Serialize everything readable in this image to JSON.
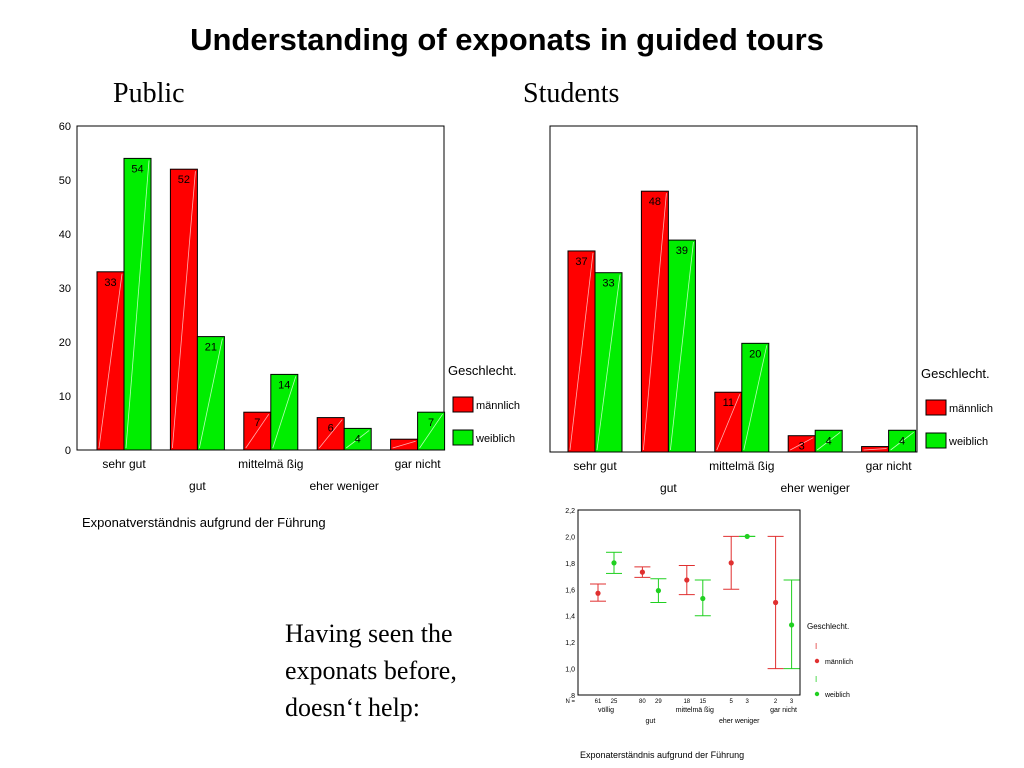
{
  "slide": {
    "title": "Understanding of exponats in guided tours",
    "public_label": "Public",
    "students_label": "Students",
    "tagline": [
      "Having seen the",
      "exponats before,",
      "doesn‘t help:"
    ]
  },
  "colors": {
    "maennlich": "#ff0000",
    "weiblich": "#00ee00",
    "frame": "#000000"
  },
  "chart_data": [
    {
      "type": "bar",
      "name": "public",
      "categories": [
        "sehr gut",
        "gut",
        "mittelmä ßig",
        "eher weniger",
        "gar nicht"
      ],
      "category_rows": [
        0,
        1,
        0,
        1,
        0
      ],
      "series": [
        {
          "name": "männlich",
          "values": [
            33,
            52,
            7,
            6,
            2
          ]
        },
        {
          "name": "weiblich",
          "values": [
            54,
            21,
            14,
            4,
            7
          ]
        }
      ],
      "data_labels": [
        [
          "33",
          "52",
          "7",
          "6",
          ""
        ],
        [
          "54",
          "21",
          "14",
          "4",
          "7"
        ]
      ],
      "ylim": [
        0,
        60
      ],
      "yticks": [
        0,
        10,
        20,
        30,
        40,
        50,
        60
      ],
      "legend_title": "Geschlecht.",
      "legend_position": "right",
      "xlabel": "Exponatverständnis aufgrund der Führung"
    },
    {
      "type": "bar",
      "name": "students",
      "categories": [
        "sehr gut",
        "gut",
        "mittelmä ßig",
        "eher weniger",
        "gar nicht"
      ],
      "category_rows": [
        0,
        1,
        0,
        1,
        0
      ],
      "series": [
        {
          "name": "männlich",
          "values": [
            37,
            48,
            11,
            3,
            1
          ]
        },
        {
          "name": "weiblich",
          "values": [
            33,
            39,
            20,
            4,
            4
          ]
        }
      ],
      "data_labels": [
        [
          "37",
          "48",
          "11",
          "3",
          ""
        ],
        [
          "33",
          "39",
          "20",
          "4",
          "4"
        ]
      ],
      "ylim": [
        0,
        60
      ],
      "legend_title": "Geschlecht.",
      "legend_position": "right",
      "xlabel": ""
    },
    {
      "type": "errorbar",
      "name": "error-bars",
      "categories": [
        "völlig",
        "gut",
        "mittelmä ßig",
        "eher weniger",
        "gar nicht"
      ],
      "category_rows": [
        0,
        1,
        0,
        1,
        0
      ],
      "n_label": "N =",
      "series": [
        {
          "name": "männlich",
          "means": [
            1.57,
            1.73,
            1.67,
            1.8,
            1.5
          ],
          "lower": [
            1.51,
            1.69,
            1.56,
            1.6,
            1.0
          ],
          "upper": [
            1.64,
            1.77,
            1.78,
            2.0,
            2.0
          ],
          "n": [
            "61",
            "80",
            "18",
            "5",
            "2"
          ]
        },
        {
          "name": "weiblich",
          "means": [
            1.8,
            1.59,
            1.53,
            2.0,
            1.33
          ],
          "lower": [
            1.72,
            1.5,
            1.4,
            2.0,
            1.0
          ],
          "upper": [
            1.88,
            1.68,
            1.67,
            2.0,
            1.67
          ],
          "n": [
            "25",
            "29",
            "15",
            "3",
            "3"
          ]
        }
      ],
      "ylim": [
        0.8,
        2.2
      ],
      "yticks": [
        ".8",
        "1,0",
        "1,2",
        "1,4",
        "1,6",
        "1,8",
        "2,0",
        "2,2"
      ],
      "legend_title": "Geschlecht.",
      "legend_position": "right",
      "xlabel": "Exponaterständnis aufgrund der Führung"
    }
  ]
}
